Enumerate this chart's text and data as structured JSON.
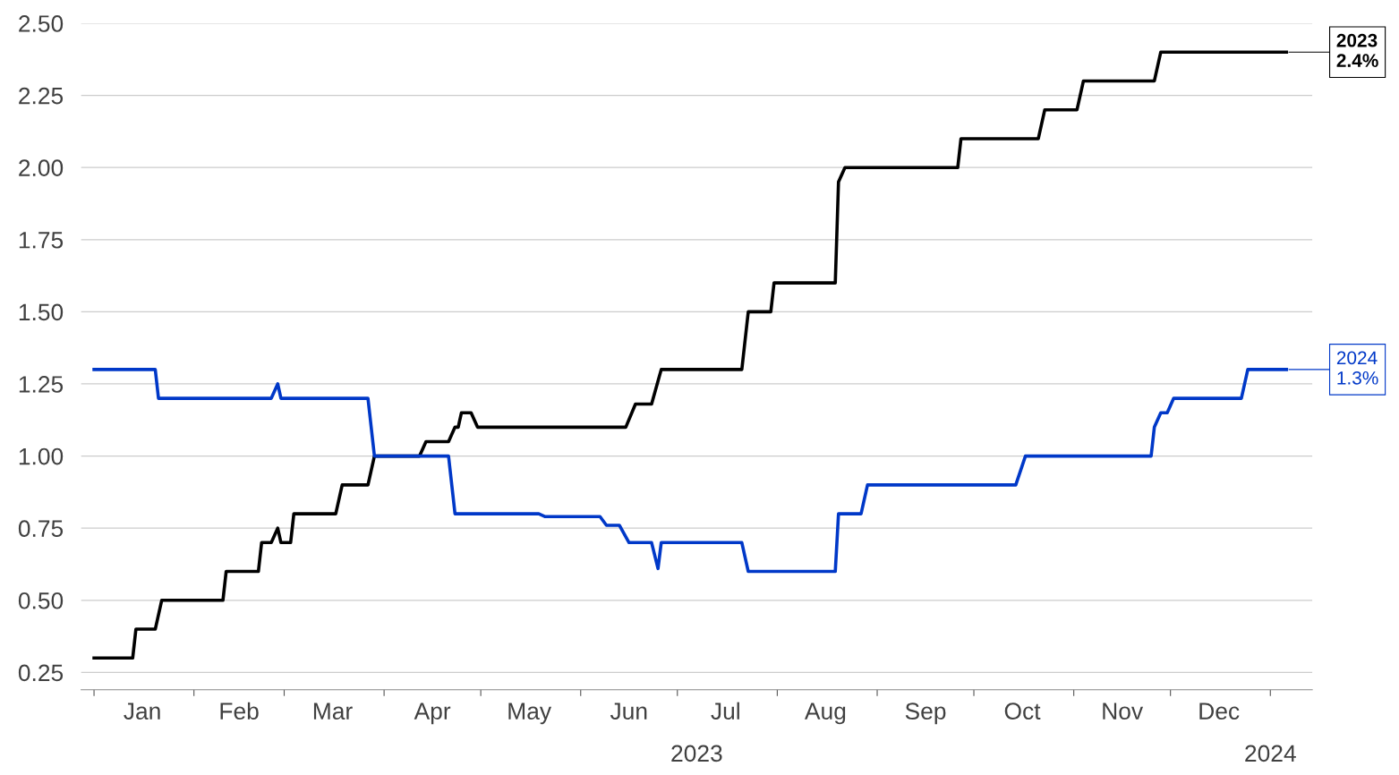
{
  "chart_data": {
    "type": "line",
    "xlabel": "2023",
    "grid": "y",
    "legend": false,
    "marker": "none",
    "line_style": "solid",
    "xlim": [
      "2022-12-28",
      "2024-01-14"
    ],
    "ylim": [
      0.19,
      2.5
    ],
    "annotations": [
      "2024"
    ],
    "yticks": [
      {
        "value": 0.25,
        "label": "0.25"
      },
      {
        "value": 0.5,
        "label": "0.50"
      },
      {
        "value": 0.75,
        "label": "0.75"
      },
      {
        "value": 1.0,
        "label": "1.00"
      },
      {
        "value": 1.25,
        "label": "1.25"
      },
      {
        "value": 1.5,
        "label": "1.50"
      },
      {
        "value": 1.75,
        "label": "1.75"
      },
      {
        "value": 2.0,
        "label": "2.00"
      },
      {
        "value": 2.25,
        "label": "2.25"
      },
      {
        "value": 2.5,
        "label": "2.50"
      }
    ],
    "xticks": [
      {
        "value": "2023-01-01",
        "label": null
      },
      {
        "value": "2023-02-01",
        "label": null
      },
      {
        "value": "2023-03-01",
        "label": null
      },
      {
        "value": "2023-04-01",
        "label": null
      },
      {
        "value": "2023-05-01",
        "label": null
      },
      {
        "value": "2023-06-01",
        "label": null
      },
      {
        "value": "2023-07-01",
        "label": null
      },
      {
        "value": "2023-08-01",
        "label": null
      },
      {
        "value": "2023-09-01",
        "label": null
      },
      {
        "value": "2023-10-01",
        "label": null
      },
      {
        "value": "2023-11-01",
        "label": null
      },
      {
        "value": "2023-12-01",
        "label": null
      },
      {
        "value": "2024-01-01",
        "label": null
      },
      {
        "value": "2023-01-16",
        "label": "Jan"
      },
      {
        "value": "2023-02-15",
        "label": "Feb"
      },
      {
        "value": "2023-03-16",
        "label": "Mar"
      },
      {
        "value": "2023-04-16",
        "label": "Apr"
      },
      {
        "value": "2023-05-16",
        "label": "May"
      },
      {
        "value": "2023-06-16",
        "label": "Jun"
      },
      {
        "value": "2023-07-16",
        "label": "Jul"
      },
      {
        "value": "2023-08-16",
        "label": "Aug"
      },
      {
        "value": "2023-09-16",
        "label": "Sep"
      },
      {
        "value": "2023-10-16",
        "label": "Oct"
      },
      {
        "value": "2023-11-16",
        "label": "Nov"
      },
      {
        "value": "2023-12-16",
        "label": "Dec"
      }
    ],
    "series": [
      {
        "name": "2023",
        "color": "#000000",
        "x": [
          "2023-01-01",
          "2023-01-13",
          "2023-01-14",
          "2023-01-20",
          "2023-01-22",
          "2023-02-10",
          "2023-02-11",
          "2023-02-21",
          "2023-02-22",
          "2023-02-25",
          "2023-02-27",
          "2023-02-28",
          "2023-03-03",
          "2023-03-04",
          "2023-03-17",
          "2023-03-19",
          "2023-03-27",
          "2023-03-29",
          "2023-04-12",
          "2023-04-14",
          "2023-04-21",
          "2023-04-23",
          "2023-04-24",
          "2023-04-25",
          "2023-04-28",
          "2023-04-30",
          "2023-06-15",
          "2023-06-18",
          "2023-06-23",
          "2023-06-25",
          "2023-06-26",
          "2023-07-21",
          "2023-07-23",
          "2023-07-30",
          "2023-07-31",
          "2023-08-19",
          "2023-08-20",
          "2023-08-22",
          "2023-09-26",
          "2023-09-27",
          "2023-10-21",
          "2023-10-23",
          "2023-11-02",
          "2023-11-04",
          "2023-11-26",
          "2023-11-28",
          "2024-01-06"
        ],
        "values": [
          0.3,
          0.3,
          0.4,
          0.4,
          0.5,
          0.5,
          0.6,
          0.6,
          0.7,
          0.7,
          0.75,
          0.7,
          0.7,
          0.8,
          0.8,
          0.9,
          0.9,
          1.0,
          1.0,
          1.05,
          1.05,
          1.1,
          1.1,
          1.15,
          1.15,
          1.1,
          1.1,
          1.18,
          1.18,
          1.26,
          1.3,
          1.3,
          1.5,
          1.5,
          1.6,
          1.6,
          1.95,
          2.0,
          2.0,
          2.1,
          2.1,
          2.2,
          2.2,
          2.3,
          2.3,
          2.4,
          2.4
        ],
        "value_labels": [
          null,
          null,
          null,
          null,
          null,
          null,
          null,
          null,
          null,
          null,
          null,
          null,
          null,
          null,
          null,
          null,
          null,
          null,
          null,
          null,
          null,
          null,
          null,
          null,
          null,
          null,
          null,
          null,
          null,
          null,
          null,
          null,
          null,
          null,
          null,
          null,
          null,
          null,
          null,
          null,
          null,
          null,
          null,
          null,
          null,
          null,
          "2.4%"
        ]
      },
      {
        "name": "2024",
        "color": "#0038c8",
        "x": [
          "2023-01-01",
          "2023-01-20",
          "2023-01-21",
          "2023-02-25",
          "2023-02-27",
          "2023-02-28",
          "2023-03-27",
          "2023-03-29",
          "2023-04-21",
          "2023-04-23",
          "2023-05-19",
          "2023-05-21",
          "2023-06-07",
          "2023-06-09",
          "2023-06-13",
          "2023-06-16",
          "2023-06-23",
          "2023-06-25",
          "2023-06-26",
          "2023-07-21",
          "2023-07-23",
          "2023-08-19",
          "2023-08-20",
          "2023-08-27",
          "2023-08-29",
          "2023-10-14",
          "2023-10-17",
          "2023-11-25",
          "2023-11-26",
          "2023-11-28",
          "2023-11-30",
          "2023-12-02",
          "2023-12-23",
          "2023-12-25",
          "2024-01-06"
        ],
        "values": [
          1.3,
          1.3,
          1.2,
          1.2,
          1.25,
          1.2,
          1.2,
          1.0,
          1.0,
          0.8,
          0.8,
          0.79,
          0.79,
          0.76,
          0.76,
          0.7,
          0.7,
          0.61,
          0.7,
          0.7,
          0.6,
          0.6,
          0.8,
          0.8,
          0.9,
          0.9,
          1.0,
          1.0,
          1.1,
          1.15,
          1.15,
          1.2,
          1.2,
          1.3,
          1.3
        ],
        "value_labels": [
          null,
          null,
          null,
          null,
          null,
          null,
          null,
          null,
          null,
          null,
          null,
          null,
          null,
          null,
          null,
          null,
          null,
          null,
          null,
          null,
          null,
          null,
          null,
          null,
          null,
          null,
          null,
          null,
          null,
          null,
          null,
          null,
          null,
          null,
          "1.3%"
        ]
      }
    ]
  }
}
